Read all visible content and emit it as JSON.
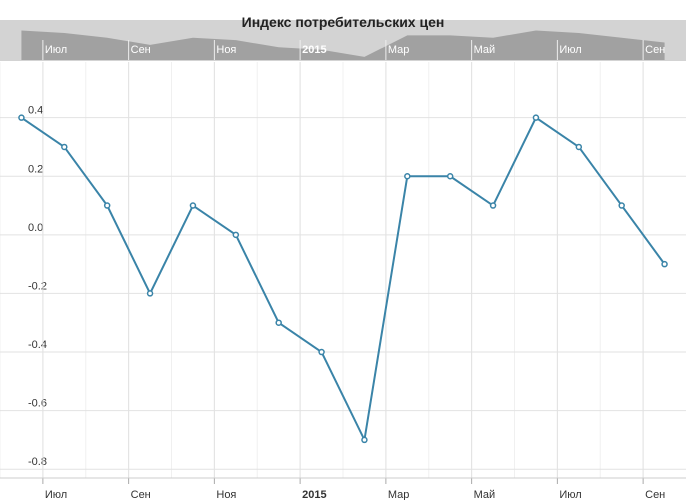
{
  "chart_data": {
    "type": "line",
    "title": "Индекс потребительских цен",
    "x": [
      "2014-06",
      "2014-07",
      "2014-08",
      "2014-09",
      "2014-10",
      "2014-11",
      "2014-12",
      "2015-01",
      "2015-02",
      "2015-03",
      "2015-04",
      "2015-05",
      "2015-06",
      "2015-07",
      "2015-08",
      "2015-09"
    ],
    "series": [
      {
        "color": "#3a84a8",
        "values": [
          0.4,
          0.3,
          0.1,
          -0.2,
          0.1,
          0.0,
          -0.3,
          -0.4,
          -0.7,
          0.2,
          0.2,
          0.1,
          0.4,
          0.3,
          0.1,
          -0.1
        ]
      }
    ],
    "xlim": [
      "2014-06",
      "2015-09"
    ],
    "xticks": [
      {
        "value": "2014-07",
        "label": "Июл"
      },
      {
        "value": "2014-09",
        "label": "Сен"
      },
      {
        "value": "2014-11",
        "label": "Ноя"
      },
      {
        "value": "2015-01",
        "label": "2015"
      },
      {
        "value": "2015-03",
        "label": "Мар"
      },
      {
        "value": "2015-05",
        "label": "Май"
      },
      {
        "value": "2015-07",
        "label": "Июл"
      },
      {
        "value": "2015-09",
        "label": "Сен"
      }
    ],
    "ylim": [
      -0.83,
      0.59
    ],
    "yticks": [
      -0.8,
      -0.6,
      -0.4,
      -0.2,
      {
        "value": 0,
        "label": "0.0"
      },
      0.2,
      0.4
    ],
    "grid": true
  }
}
